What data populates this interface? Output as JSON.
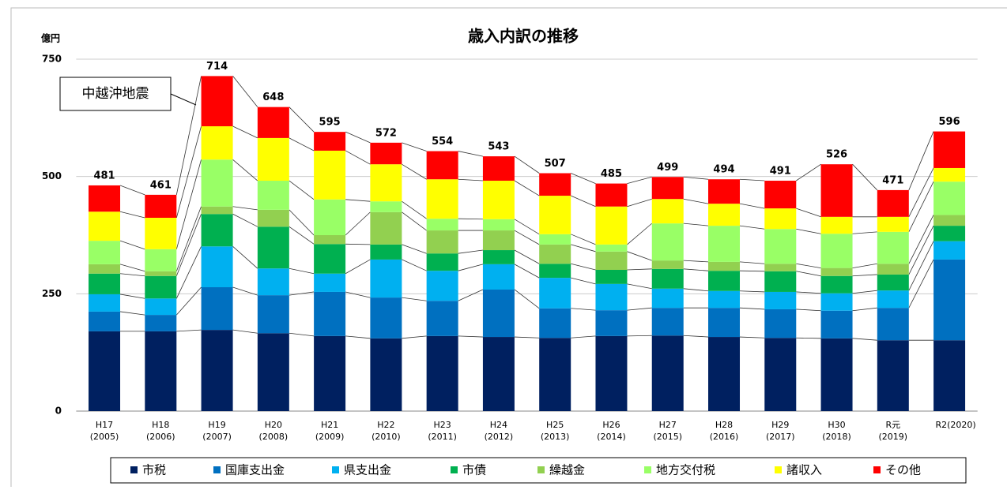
{
  "chart_data": {
    "type": "stacked_bar",
    "title": "歳入内訳の推移",
    "y_label": "億円",
    "annotation": "中越沖地震",
    "categories": [
      [
        "H17",
        "(2005)"
      ],
      [
        "H18",
        "(2006)"
      ],
      [
        "H19",
        "(2007)"
      ],
      [
        "H20",
        "(2008)"
      ],
      [
        "H21",
        "(2009)"
      ],
      [
        "H22",
        "(2010)"
      ],
      [
        "H23",
        "(2011)"
      ],
      [
        "H24",
        "(2012)"
      ],
      [
        "H25",
        "(2013)"
      ],
      [
        "H26",
        "(2014)"
      ],
      [
        "H27",
        "(2015)"
      ],
      [
        "H28",
        "(2016)"
      ],
      [
        "H29",
        "(2017)"
      ],
      [
        "H30",
        "(2018)"
      ],
      [
        "R元",
        "(2019)"
      ],
      [
        "R2(2020)"
      ]
    ],
    "totals": [
      481,
      461,
      714,
      648,
      595,
      572,
      554,
      543,
      507,
      485,
      499,
      494,
      491,
      526,
      471,
      596
    ],
    "series": [
      {
        "name": "市税",
        "color": "#002060",
        "values": [
          170,
          170,
          173,
          166,
          160,
          155,
          160,
          158,
          156,
          160,
          161,
          158,
          156,
          155,
          151,
          151
        ]
      },
      {
        "name": "国庫支出金",
        "color": "#0070c0",
        "values": [
          42,
          35,
          91,
          81,
          94,
          87,
          75,
          101,
          63,
          55,
          59,
          62,
          61,
          59,
          69,
          172
        ]
      },
      {
        "name": "県支出金",
        "color": "#00b0f0",
        "values": [
          37,
          35,
          87,
          57,
          39,
          81,
          64,
          54,
          65,
          56,
          41,
          36,
          37,
          37,
          37,
          39
        ]
      },
      {
        "name": "市債",
        "color": "#00b050",
        "values": [
          44,
          48,
          69,
          89,
          63,
          32,
          37,
          30,
          30,
          30,
          42,
          43,
          44,
          37,
          34,
          33
        ]
      },
      {
        "name": "繰越金",
        "color": "#92d050",
        "values": [
          20,
          10,
          16,
          36,
          19,
          69,
          49,
          42,
          41,
          39,
          18,
          19,
          16,
          17,
          23,
          23
        ]
      },
      {
        "name": "地方交付税",
        "color": "#99ff66",
        "values": [
          50,
          47,
          100,
          62,
          76,
          23,
          25,
          24,
          22,
          15,
          79,
          77,
          74,
          73,
          68,
          71
        ]
      },
      {
        "name": "諸収入",
        "color": "#ffff00",
        "values": [
          62,
          67,
          71,
          91,
          104,
          79,
          84,
          82,
          82,
          81,
          52,
          47,
          44,
          36,
          32,
          29
        ]
      },
      {
        "name": "その他",
        "color": "#ff0000",
        "values": [
          56,
          49,
          107,
          66,
          40,
          46,
          60,
          52,
          48,
          49,
          47,
          52,
          59,
          112,
          57,
          78
        ]
      }
    ],
    "ylim": [
      0,
      750
    ],
    "yticks": [
      0,
      250,
      500,
      750
    ],
    "grid": true,
    "legend": "bottom"
  }
}
